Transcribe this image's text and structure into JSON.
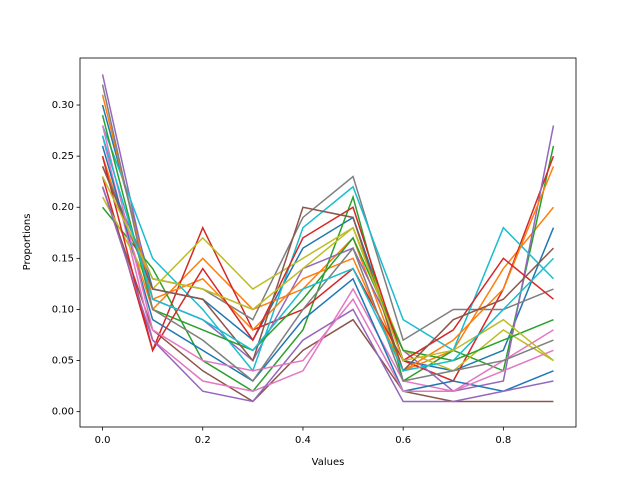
{
  "chart_data": {
    "type": "line",
    "xlabel": "Values",
    "ylabel": "Proportions",
    "x": [
      0,
      0.1,
      0.2,
      0.3,
      0.4,
      0.5,
      0.6,
      0.7,
      0.8,
      0.9
    ],
    "series": [
      {
        "color": "#1f77b4",
        "values": [
          0.3,
          0.12,
          0.11,
          0.07,
          0.16,
          0.19,
          0.05,
          0.04,
          0.06,
          0.18
        ]
      },
      {
        "color": "#ff7f0e",
        "values": [
          0.25,
          0.1,
          0.15,
          0.1,
          0.12,
          0.17,
          0.04,
          0.06,
          0.14,
          0.2
        ]
      },
      {
        "color": "#2ca02c",
        "values": [
          0.2,
          0.14,
          0.05,
          0.02,
          0.08,
          0.21,
          0.03,
          0.06,
          0.04,
          0.26
        ]
      },
      {
        "color": "#d62728",
        "values": [
          0.23,
          0.06,
          0.18,
          0.08,
          0.1,
          0.14,
          0.05,
          0.03,
          0.12,
          0.25
        ]
      },
      {
        "color": "#9467bd",
        "values": [
          0.33,
          0.11,
          0.09,
          0.05,
          0.14,
          0.16,
          0.06,
          0.02,
          0.03,
          0.28
        ]
      },
      {
        "color": "#8c564b",
        "values": [
          0.22,
          0.08,
          0.04,
          0.01,
          0.06,
          0.09,
          0.02,
          0.01,
          0.01,
          0.01
        ]
      },
      {
        "color": "#e377c2",
        "values": [
          0.27,
          0.07,
          0.03,
          0.02,
          0.04,
          0.12,
          0.03,
          0.02,
          0.05,
          0.08
        ]
      },
      {
        "color": "#7f7f7f",
        "values": [
          0.24,
          0.13,
          0.12,
          0.09,
          0.19,
          0.23,
          0.07,
          0.1,
          0.1,
          0.12
        ]
      },
      {
        "color": "#bcbd22",
        "values": [
          0.21,
          0.12,
          0.17,
          0.12,
          0.15,
          0.18,
          0.06,
          0.04,
          0.08,
          0.05
        ]
      },
      {
        "color": "#17becf",
        "values": [
          0.28,
          0.15,
          0.1,
          0.04,
          0.18,
          0.22,
          0.09,
          0.06,
          0.18,
          0.13
        ]
      },
      {
        "color": "#1f77b4",
        "values": [
          0.26,
          0.09,
          0.06,
          0.03,
          0.09,
          0.13,
          0.02,
          0.03,
          0.02,
          0.04
        ]
      },
      {
        "color": "#ff7f0e",
        "values": [
          0.31,
          0.11,
          0.13,
          0.08,
          0.13,
          0.15,
          0.04,
          0.07,
          0.12,
          0.24
        ]
      },
      {
        "color": "#2ca02c",
        "values": [
          0.29,
          0.1,
          0.08,
          0.06,
          0.11,
          0.17,
          0.06,
          0.05,
          0.07,
          0.09
        ]
      },
      {
        "color": "#d62728",
        "values": [
          0.25,
          0.06,
          0.14,
          0.07,
          0.17,
          0.2,
          0.05,
          0.08,
          0.15,
          0.11
        ]
      },
      {
        "color": "#9467bd",
        "values": [
          0.22,
          0.07,
          0.02,
          0.01,
          0.07,
          0.1,
          0.01,
          0.01,
          0.02,
          0.03
        ]
      },
      {
        "color": "#8c564b",
        "values": [
          0.24,
          0.12,
          0.11,
          0.05,
          0.2,
          0.19,
          0.04,
          0.09,
          0.11,
          0.16
        ]
      },
      {
        "color": "#e377c2",
        "values": [
          0.28,
          0.08,
          0.05,
          0.04,
          0.05,
          0.11,
          0.02,
          0.02,
          0.04,
          0.06
        ]
      },
      {
        "color": "#7f7f7f",
        "values": [
          0.32,
          0.1,
          0.07,
          0.03,
          0.1,
          0.16,
          0.03,
          0.04,
          0.05,
          0.07
        ]
      },
      {
        "color": "#bcbd22",
        "values": [
          0.23,
          0.13,
          0.12,
          0.1,
          0.14,
          0.18,
          0.05,
          0.06,
          0.09,
          0.05
        ]
      },
      {
        "color": "#17becf",
        "values": [
          0.27,
          0.11,
          0.09,
          0.06,
          0.12,
          0.14,
          0.04,
          0.05,
          0.1,
          0.15
        ]
      }
    ],
    "xlim": [
      -0.045,
      0.945
    ],
    "ylim": [
      -0.015,
      0.346
    ],
    "xticks": [
      {
        "value": 0,
        "label": "0.0"
      },
      {
        "value": 0.2,
        "label": "0.2"
      },
      {
        "value": 0.4,
        "label": "0.4"
      },
      {
        "value": 0.6,
        "label": "0.6"
      },
      {
        "value": 0.8,
        "label": "0.8"
      }
    ],
    "yticks": [
      {
        "value": 0,
        "label": "0.00"
      },
      {
        "value": 0.05,
        "label": "0.05"
      },
      {
        "value": 0.1,
        "label": "0.10"
      },
      {
        "value": 0.15,
        "label": "0.15"
      },
      {
        "value": 0.2,
        "label": "0.20"
      },
      {
        "value": 0.25,
        "label": "0.25"
      },
      {
        "value": 0.3,
        "label": "0.30"
      }
    ],
    "grid": false
  }
}
